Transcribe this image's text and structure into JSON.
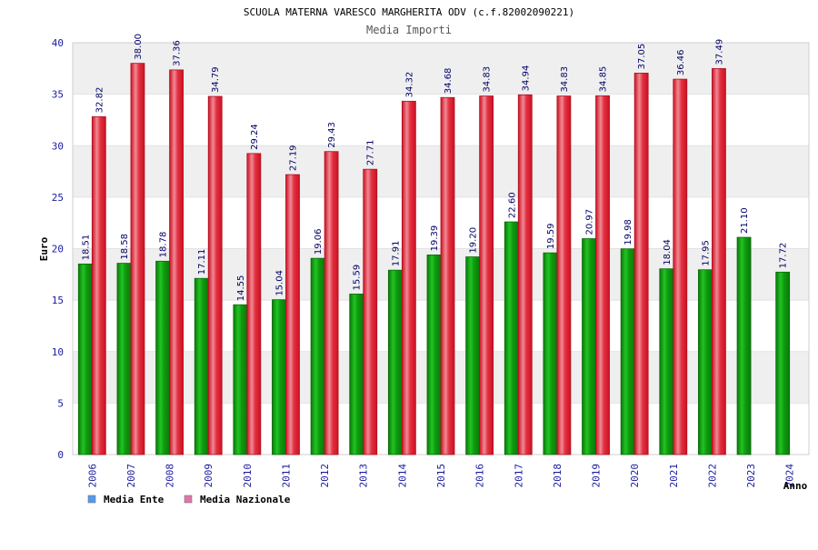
{
  "chart_data": {
    "type": "bar",
    "title": "SCUOLA MATERNA VARESCO MARGHERITA ODV (c.f.82002090221)",
    "subtitle": "Media Importi",
    "xlabel": "Anno",
    "ylabel": "Euro",
    "ylim": [
      0,
      40
    ],
    "yticks": [
      0,
      5,
      10,
      15,
      20,
      25,
      30,
      35,
      40
    ],
    "grid": true,
    "legend_position": "bottom-left",
    "categories": [
      "2006",
      "2007",
      "2008",
      "2009",
      "2010",
      "2011",
      "2012",
      "2013",
      "2014",
      "2015",
      "2016",
      "2017",
      "2018",
      "2019",
      "2020",
      "2021",
      "2022",
      "2023",
      "2024"
    ],
    "series": [
      {
        "name": "Media Ente",
        "color": "#22bb22",
        "legend_color": "#5599ee",
        "values": [
          18.51,
          18.58,
          18.78,
          17.11,
          14.55,
          15.04,
          19.06,
          15.59,
          17.91,
          19.39,
          19.2,
          22.6,
          19.59,
          20.97,
          19.98,
          18.04,
          17.95,
          21.1,
          17.72
        ],
        "labels": [
          "18.51",
          "18.58",
          "18.78",
          "17.11",
          "14.55",
          "15.04",
          "19.06",
          "15.59",
          "17.91",
          "19.39",
          "19.20",
          "22.60",
          "19.59",
          "20.97",
          "19.98",
          "18.04",
          "17.95",
          "21.10",
          "17.72"
        ]
      },
      {
        "name": "Media Nazionale",
        "color": "#ee3344",
        "legend_color": "#dd77aa",
        "values": [
          32.82,
          38.0,
          37.36,
          34.79,
          29.24,
          27.19,
          29.43,
          27.71,
          34.32,
          34.68,
          34.83,
          34.94,
          34.83,
          34.85,
          37.05,
          36.46,
          37.49,
          null,
          null
        ],
        "labels": [
          "32.82",
          "38.00",
          "37.36",
          "34.79",
          "29.24",
          "27.19",
          "29.43",
          "27.71",
          "34.32",
          "34.68",
          "34.83",
          "34.94",
          "34.83",
          "34.85",
          "37.05",
          "36.46",
          "37.49",
          null,
          null
        ]
      }
    ]
  }
}
